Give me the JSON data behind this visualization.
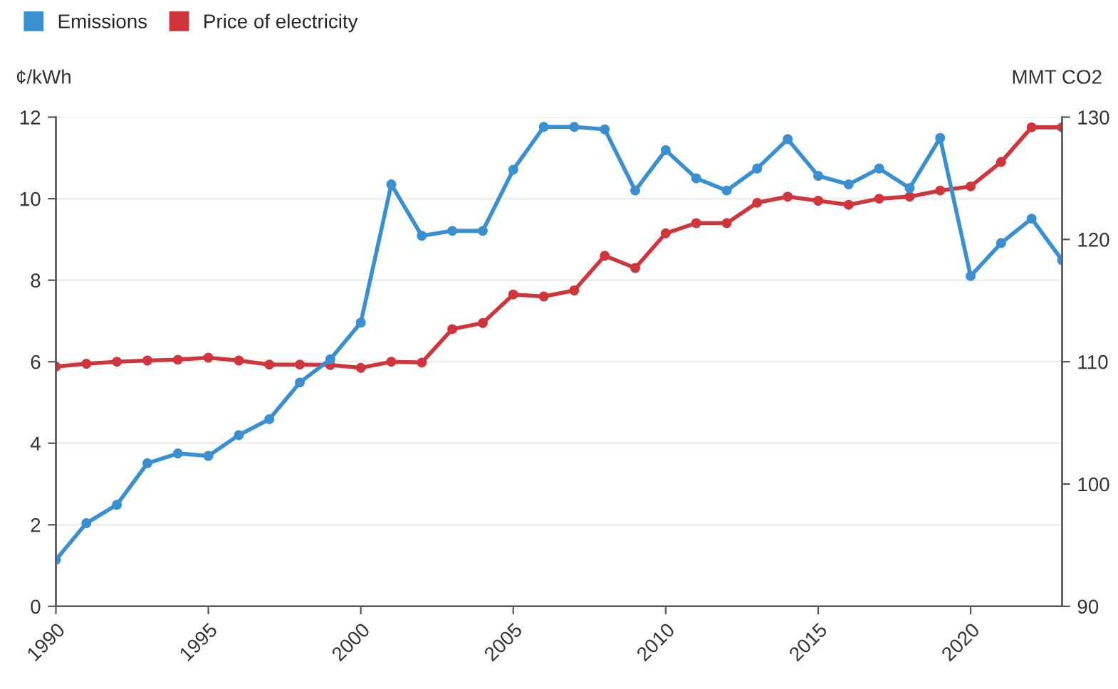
{
  "chart_data": {
    "type": "line",
    "xlabel": null,
    "ylabel": "¢/kWh",
    "y2label": "MMT CO2",
    "x": [
      1990,
      1991,
      1992,
      1993,
      1994,
      1995,
      1996,
      1997,
      1998,
      1999,
      2000,
      2001,
      2002,
      2003,
      2004,
      2005,
      2006,
      2007,
      2008,
      2009,
      2010,
      2011,
      2012,
      2013,
      2014,
      2015,
      2016,
      2017,
      2018,
      2019,
      2020,
      2021,
      2022,
      2023
    ],
    "series": [
      {
        "name": "Emissions",
        "color": "#3a8fd0",
        "axis": "y2",
        "values": [
          93.8,
          96.8,
          98.3,
          101.7,
          102.5,
          102.3,
          104.0,
          105.3,
          108.3,
          110.2,
          113.2,
          124.5,
          120.3,
          120.7,
          120.7,
          125.7,
          129.2,
          129.2,
          129.0,
          124.0,
          127.3,
          125.0,
          124.0,
          125.8,
          128.2,
          125.2,
          124.5,
          125.8,
          124.2,
          128.3,
          117.0,
          119.7,
          121.7,
          118.3
        ]
      },
      {
        "name": "Price of electricity",
        "color": "#d0353c",
        "values": [
          5.88,
          5.95,
          6.0,
          6.03,
          6.05,
          6.1,
          6.03,
          5.93,
          5.93,
          5.92,
          5.85,
          6.0,
          5.98,
          6.8,
          6.95,
          7.65,
          7.6,
          7.75,
          8.6,
          8.3,
          9.15,
          9.4,
          9.4,
          9.9,
          10.05,
          9.95,
          9.85,
          10.0,
          10.05,
          10.2,
          10.3,
          10.9,
          11.75,
          11.75
        ]
      }
    ],
    "xlim": [
      1990,
      2023
    ],
    "xticks": [
      1990,
      1995,
      2000,
      2005,
      2010,
      2015,
      2020
    ],
    "ylim": [
      0,
      12
    ],
    "yticks": [
      0,
      2,
      4,
      6,
      8,
      10,
      12
    ],
    "y2lim": [
      90,
      130
    ],
    "y2ticks": [
      90,
      100,
      110,
      120,
      130
    ],
    "grid": "y",
    "legend": "top left",
    "marker": "circle",
    "line_style": "solid"
  }
}
